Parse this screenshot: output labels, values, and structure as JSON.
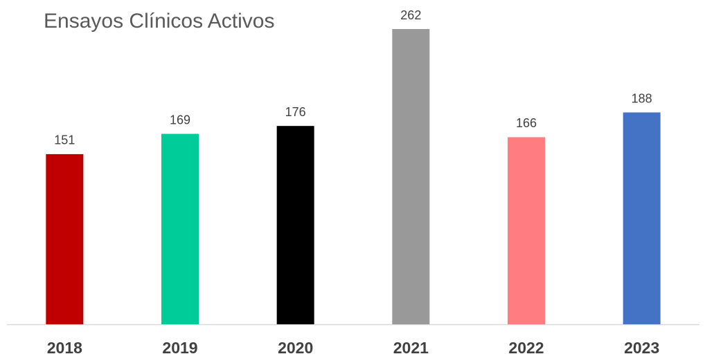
{
  "chart_data": {
    "type": "bar",
    "title": "Ensayos Clínicos Activos",
    "categories": [
      "2018",
      "2019",
      "2020",
      "2021",
      "2022",
      "2023"
    ],
    "values": [
      151,
      169,
      176,
      262,
      166,
      188
    ],
    "colors": [
      "#c00000",
      "#00cc99",
      "#000000",
      "#999999",
      "#ff7c80",
      "#4472c4"
    ],
    "grid": false
  }
}
